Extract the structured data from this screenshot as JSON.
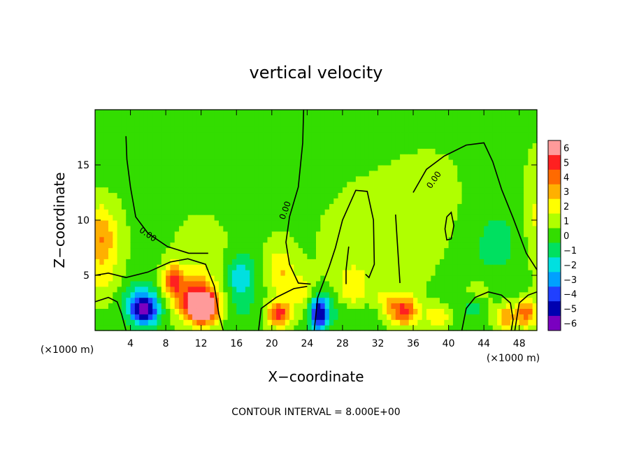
{
  "chart_data": {
    "type": "heatmap",
    "title": "vertical velocity",
    "xlabel": "X−coordinate",
    "ylabel": "Z−coordinate",
    "x_unit_label": "(×1000 m)",
    "y_unit_label": "(×1000 m)",
    "footer": "CONTOUR INTERVAL = 8.000E+00",
    "xlim": [
      0,
      50
    ],
    "ylim": [
      0,
      20
    ],
    "x_ticks": [
      4,
      8,
      12,
      16,
      20,
      24,
      28,
      32,
      36,
      40,
      44,
      48
    ],
    "x_tick_labels": [
      "4",
      "8",
      "12",
      "16",
      "20",
      "24",
      "28",
      "32",
      "36",
      "40",
      "44",
      "48"
    ],
    "y_ticks": [
      5,
      10,
      15
    ],
    "y_tick_labels": [
      "5",
      "10",
      "15"
    ],
    "contour_label": "0.00",
    "colorbar": {
      "levels": [
        6,
        5,
        4,
        3,
        2,
        1,
        0,
        -1,
        -2,
        -3,
        -4,
        -5,
        -6
      ],
      "labels": [
        "6",
        "5",
        "4",
        "3",
        "2",
        "1",
        "0",
        "−1",
        "−2",
        "−3",
        "−4",
        "−5",
        "−6"
      ],
      "colors": [
        "#ff9a9a",
        "#ff2020",
        "#ff6a00",
        "#ffb000",
        "#ffff00",
        "#b0ff00",
        "#33dd00",
        "#00e060",
        "#00e0e0",
        "#00a0ff",
        "#2040ff",
        "#0000b0",
        "#7a00c0"
      ]
    },
    "background_value": 0.3,
    "features": [
      {
        "x": 0.6,
        "z": 8.5,
        "value": 3.2,
        "sx": 1.4,
        "sz": 2.0
      },
      {
        "x": 1.0,
        "z": 4.5,
        "value": 1.2,
        "sx": 1.5,
        "sz": 1.5
      },
      {
        "x": 5.6,
        "z": 1.8,
        "value": -5.8,
        "sx": 1.1,
        "sz": 0.9
      },
      {
        "x": 5.0,
        "z": 3.0,
        "value": -2.0,
        "sx": 1.6,
        "sz": 1.3
      },
      {
        "x": 8.8,
        "z": 4.6,
        "value": 4.4,
        "sx": 0.8,
        "sz": 1.0
      },
      {
        "x": 12.2,
        "z": 2.0,
        "value": 6.5,
        "sx": 1.2,
        "sz": 0.9
      },
      {
        "x": 11.4,
        "z": 3.0,
        "value": 4.5,
        "sx": 1.7,
        "sz": 1.3
      },
      {
        "x": 12.0,
        "z": 7.0,
        "value": 0.9,
        "sx": 2.0,
        "sz": 2.5
      },
      {
        "x": 16.5,
        "z": 5.0,
        "value": -2.6,
        "sx": 1.1,
        "sz": 1.4
      },
      {
        "x": 16.5,
        "z": 2.0,
        "value": -0.8,
        "sx": 1.6,
        "sz": 1.5
      },
      {
        "x": 20.8,
        "z": 1.5,
        "value": 4.8,
        "sx": 0.9,
        "sz": 0.8
      },
      {
        "x": 21.0,
        "z": 5.5,
        "value": 2.2,
        "sx": 1.1,
        "sz": 1.6
      },
      {
        "x": 23.5,
        "z": 3.5,
        "value": 1.6,
        "sx": 1.2,
        "sz": 1.2
      },
      {
        "x": 25.3,
        "z": 1.6,
        "value": -5.5,
        "sx": 0.7,
        "sz": 1.2
      },
      {
        "x": 27.0,
        "z": 2.0,
        "value": -1.2,
        "sx": 1.3,
        "sz": 1.2
      },
      {
        "x": 29.0,
        "z": 3.5,
        "value": 1.8,
        "sx": 1.3,
        "sz": 1.6
      },
      {
        "x": 30.5,
        "z": 1.5,
        "value": -1.2,
        "sx": 1.6,
        "sz": 1.0
      },
      {
        "x": 35.0,
        "z": 1.8,
        "value": 4.2,
        "sx": 1.1,
        "sz": 0.9
      },
      {
        "x": 33.0,
        "z": 2.5,
        "value": 1.5,
        "sx": 1.3,
        "sz": 1.0
      },
      {
        "x": 39.0,
        "z": 1.5,
        "value": 2.6,
        "sx": 1.0,
        "sz": 0.8
      },
      {
        "x": 40.5,
        "z": 2.5,
        "value": -1.1,
        "sx": 1.4,
        "sz": 1.2
      },
      {
        "x": 43.0,
        "z": 3.0,
        "value": 1.6,
        "sx": 1.3,
        "sz": 1.2
      },
      {
        "x": 43.0,
        "z": 2.2,
        "value": -2.0,
        "sx": 0.8,
        "sz": 0.8
      },
      {
        "x": 46.5,
        "z": 1.2,
        "value": 3.3,
        "sx": 0.8,
        "sz": 0.8
      },
      {
        "x": 48.8,
        "z": 1.6,
        "value": 4.0,
        "sx": 0.8,
        "sz": 0.9
      },
      {
        "x": 45.0,
        "z": 8.0,
        "value": -1.0,
        "sx": 3.5,
        "sz": 3.5
      },
      {
        "x": 49.8,
        "z": 10.0,
        "value": 1.6,
        "sx": 0.9,
        "sz": 3.5
      },
      {
        "x": 13.0,
        "z": 15.0,
        "value": -0.4,
        "sx": 6.0,
        "sz": 3.0
      },
      {
        "x": 32.0,
        "z": 8.0,
        "value": 0.9,
        "sx": 4.0,
        "sz": 3.5
      },
      {
        "x": 38.0,
        "z": 11.0,
        "value": 0.9,
        "sx": 3.0,
        "sz": 3.0
      }
    ],
    "zero_contours": [
      [
        [
          0.0,
          5.0
        ],
        [
          1.5,
          5.2
        ],
        [
          3.5,
          4.8
        ],
        [
          6.0,
          5.3
        ],
        [
          8.5,
          6.2
        ],
        [
          10.5,
          6.5
        ],
        [
          12.5,
          6.0
        ],
        [
          13.5,
          4.0
        ],
        [
          14.0,
          1.5
        ],
        [
          14.5,
          0.0
        ]
      ],
      [
        [
          3.5,
          17.6
        ],
        [
          3.6,
          15.5
        ],
        [
          4.0,
          13.0
        ],
        [
          4.6,
          10.3
        ],
        [
          6.0,
          8.8
        ],
        [
          8.2,
          7.6
        ],
        [
          10.6,
          7.0
        ],
        [
          12.8,
          7.0
        ]
      ],
      [
        [
          23.6,
          20.0
        ],
        [
          23.5,
          17.0
        ],
        [
          23.0,
          13.0
        ],
        [
          22.0,
          10.3
        ],
        [
          21.6,
          8.0
        ],
        [
          22.0,
          6.0
        ],
        [
          23.0,
          4.3
        ],
        [
          24.4,
          4.2
        ]
      ],
      [
        [
          24.8,
          0.0
        ],
        [
          25.2,
          3.0
        ],
        [
          26.5,
          5.8
        ],
        [
          27.2,
          7.5
        ],
        [
          28.0,
          10.0
        ],
        [
          29.5,
          12.7
        ],
        [
          30.8,
          12.6
        ],
        [
          31.5,
          10.0
        ],
        [
          31.6,
          6.0
        ],
        [
          31.0,
          4.8
        ],
        [
          30.6,
          5.1
        ]
      ],
      [
        [
          36.0,
          12.5
        ],
        [
          37.5,
          14.6
        ],
        [
          39.5,
          15.8
        ],
        [
          42.0,
          16.8
        ],
        [
          44.0,
          17.0
        ],
        [
          45.0,
          15.3
        ],
        [
          46.0,
          12.8
        ],
        [
          47.3,
          10.2
        ],
        [
          48.8,
          7.0
        ],
        [
          50.0,
          5.5
        ]
      ],
      [
        [
          34.0,
          10.5
        ],
        [
          34.2,
          8.0
        ],
        [
          34.5,
          4.3
        ]
      ],
      [
        [
          28.4,
          4.2
        ],
        [
          28.4,
          5.5
        ],
        [
          28.7,
          7.6
        ]
      ],
      [
        [
          39.8,
          10.3
        ],
        [
          40.3,
          10.7
        ],
        [
          40.6,
          9.5
        ],
        [
          40.3,
          8.3
        ],
        [
          39.8,
          8.2
        ],
        [
          39.6,
          9.2
        ],
        [
          39.8,
          10.3
        ]
      ],
      [
        [
          0.0,
          2.6
        ],
        [
          1.5,
          3.0
        ],
        [
          2.5,
          2.6
        ],
        [
          3.0,
          1.5
        ],
        [
          3.5,
          0.0
        ]
      ],
      [
        [
          41.5,
          0.0
        ],
        [
          42.0,
          2.0
        ],
        [
          43.0,
          3.0
        ],
        [
          44.5,
          3.5
        ],
        [
          46.0,
          3.2
        ],
        [
          47.0,
          2.5
        ],
        [
          47.3,
          1.0
        ],
        [
          47.1,
          0.0
        ]
      ],
      [
        [
          47.5,
          0.0
        ],
        [
          48.0,
          2.5
        ],
        [
          49.0,
          3.2
        ],
        [
          50.0,
          3.5
        ]
      ],
      [
        [
          18.5,
          0.0
        ],
        [
          18.8,
          2.0
        ],
        [
          20.5,
          3.0
        ],
        [
          22.5,
          3.8
        ],
        [
          24.0,
          4.0
        ]
      ]
    ]
  }
}
